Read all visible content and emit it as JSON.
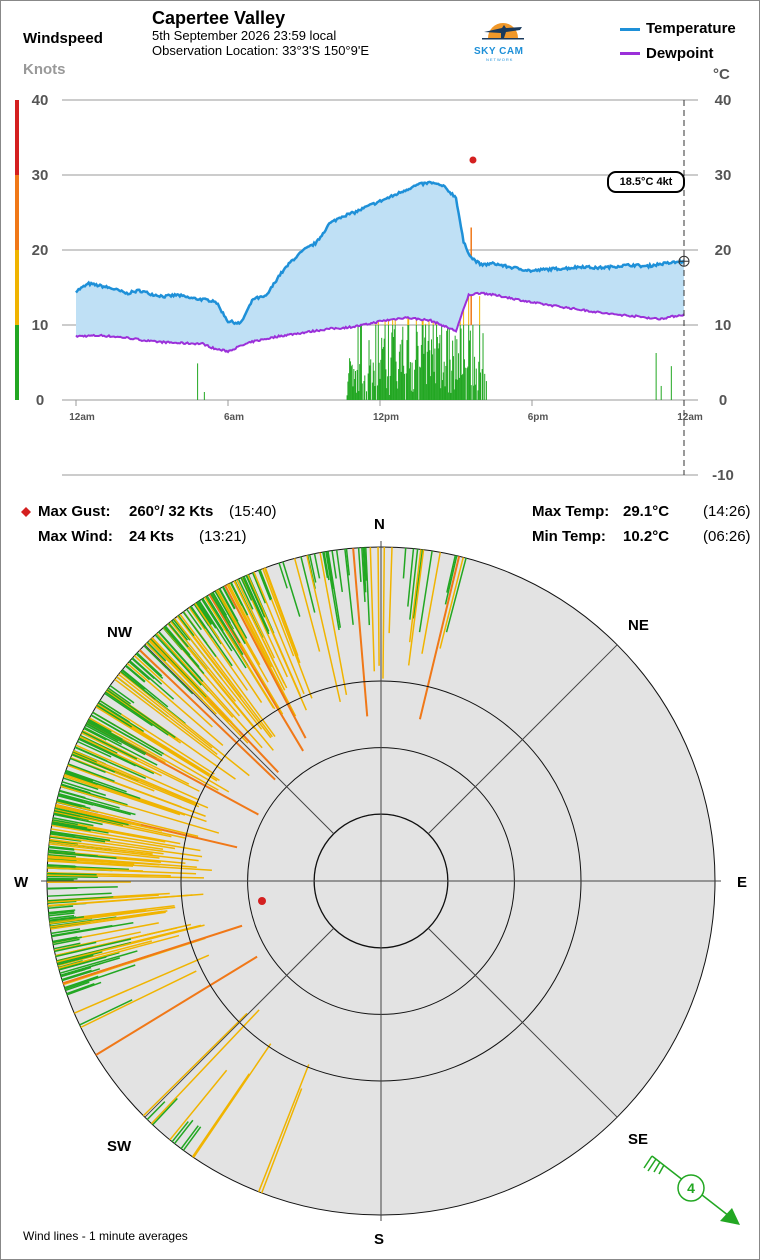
{
  "header": {
    "station": "Capertee Valley",
    "datetime": "5th September 2026  23:59 local",
    "location": "Observation Location:  33°3'S 150°9'E",
    "windspeed_label": "Windspeed",
    "knots_label": "Knots",
    "celsius_label": "°C",
    "logo_text": "SKY CAM",
    "logo_subtext": "NETWORK"
  },
  "legend": {
    "temperature": "Temperature",
    "dewpoint": "Dewpoint"
  },
  "current_badge": "18.5°C  4kt",
  "stats": {
    "max_gust_label": "Max Gust:",
    "max_gust_value": "260°/  32 Kts",
    "max_gust_time": "(15:40)",
    "max_wind_label": "Max Wind:",
    "max_wind_value": "24 Kts",
    "max_wind_time": "(13:21)",
    "max_temp_label": "Max Temp:",
    "max_temp_value": "29.1°C",
    "max_temp_time": "(14:26)",
    "min_temp_label": "Min Temp:",
    "min_temp_value": "10.2°C",
    "min_temp_time": "(06:26)"
  },
  "compass": {
    "N": "N",
    "NE": "NE",
    "E": "E",
    "SE": "SE",
    "S": "S",
    "SW": "SW",
    "W": "W",
    "NW": "NW"
  },
  "footer_note": "Wind lines - 1 minute averages",
  "wind_barb_value": "4",
  "colors": {
    "temperature": "#1e90d8",
    "dewpoint": "#9b30d9",
    "fill": "#bfe0f5",
    "green": "#22a722",
    "yellow": "#f0b400",
    "orange": "#f07818",
    "red": "#d42020",
    "polar_bg": "#e3e3e3"
  },
  "chart_data": {
    "type": "line",
    "x_ticks": [
      "12am",
      "6am",
      "12pm",
      "6pm",
      "12am"
    ],
    "wind_axis": {
      "label": "Knots",
      "ylim": [
        0,
        40
      ],
      "ticks": [
        0,
        10,
        20,
        30,
        40
      ]
    },
    "temp_axis": {
      "label": "°C",
      "ylim": [
        -10,
        40
      ],
      "ticks": [
        -10,
        0,
        10,
        20,
        30,
        40
      ]
    },
    "wind_color_bands": [
      {
        "from": 0,
        "to": 10,
        "color": "green"
      },
      {
        "from": 10,
        "to": 20,
        "color": "yellow"
      },
      {
        "from": 20,
        "to": 30,
        "color": "orange"
      },
      {
        "from": 30,
        "to": 40,
        "color": "red"
      }
    ],
    "series": [
      {
        "name": "Temperature",
        "x": [
          0,
          0.5,
          1,
          1.5,
          2,
          2.5,
          3,
          3.5,
          4,
          4.5,
          5,
          5.5,
          6,
          6.5,
          7,
          7.5,
          8,
          8.5,
          9,
          9.5,
          10,
          10.5,
          11,
          11.5,
          12,
          12.5,
          13,
          13.5,
          14,
          14.5,
          15,
          15.3,
          15.6,
          16,
          16.5,
          17,
          17.5,
          18,
          18.5,
          19,
          19.5,
          20,
          20.5,
          21,
          21.5,
          22,
          22.5,
          23,
          23.5,
          24
        ],
        "y": [
          14.5,
          15.5,
          15.2,
          14.8,
          14.2,
          14.6,
          14.1,
          13.8,
          14.0,
          13.6,
          13.4,
          13.2,
          10.5,
          10.2,
          13.5,
          13.8,
          16.5,
          18.5,
          20.0,
          21.0,
          23.5,
          24.5,
          25.0,
          25.8,
          26.5,
          27.2,
          28.0,
          28.7,
          29.0,
          28.5,
          27.0,
          21.0,
          19.0,
          18.0,
          18.2,
          17.8,
          17.5,
          17.2,
          17.4,
          17.5,
          17.6,
          17.8,
          17.6,
          17.7,
          17.9,
          18.0,
          17.8,
          18.1,
          18.3,
          18.5
        ]
      },
      {
        "name": "Dewpoint",
        "x": [
          0,
          1,
          2,
          3,
          4,
          5,
          5.5,
          6,
          6.5,
          7,
          8,
          9,
          10,
          10.5,
          11,
          11.5,
          12,
          13,
          14,
          15,
          15.5,
          16,
          17,
          18,
          19,
          20,
          21,
          22,
          23,
          24
        ],
        "y": [
          8.5,
          8.6,
          8.3,
          7.8,
          7.6,
          7.5,
          6.8,
          6.5,
          7.2,
          7.8,
          8.5,
          9.0,
          9.5,
          9.6,
          9.8,
          10.1,
          10.5,
          11.0,
          10.6,
          9.2,
          14.0,
          14.3,
          13.7,
          13.0,
          12.5,
          12.0,
          11.5,
          11.2,
          10.8,
          11.4
        ]
      }
    ],
    "wind": {
      "max_gust": {
        "direction": 260,
        "speed": 32,
        "time": "15:40"
      },
      "max_wind": {
        "speed": 24,
        "time": "13:21"
      },
      "current": {
        "speed": 4
      }
    }
  }
}
